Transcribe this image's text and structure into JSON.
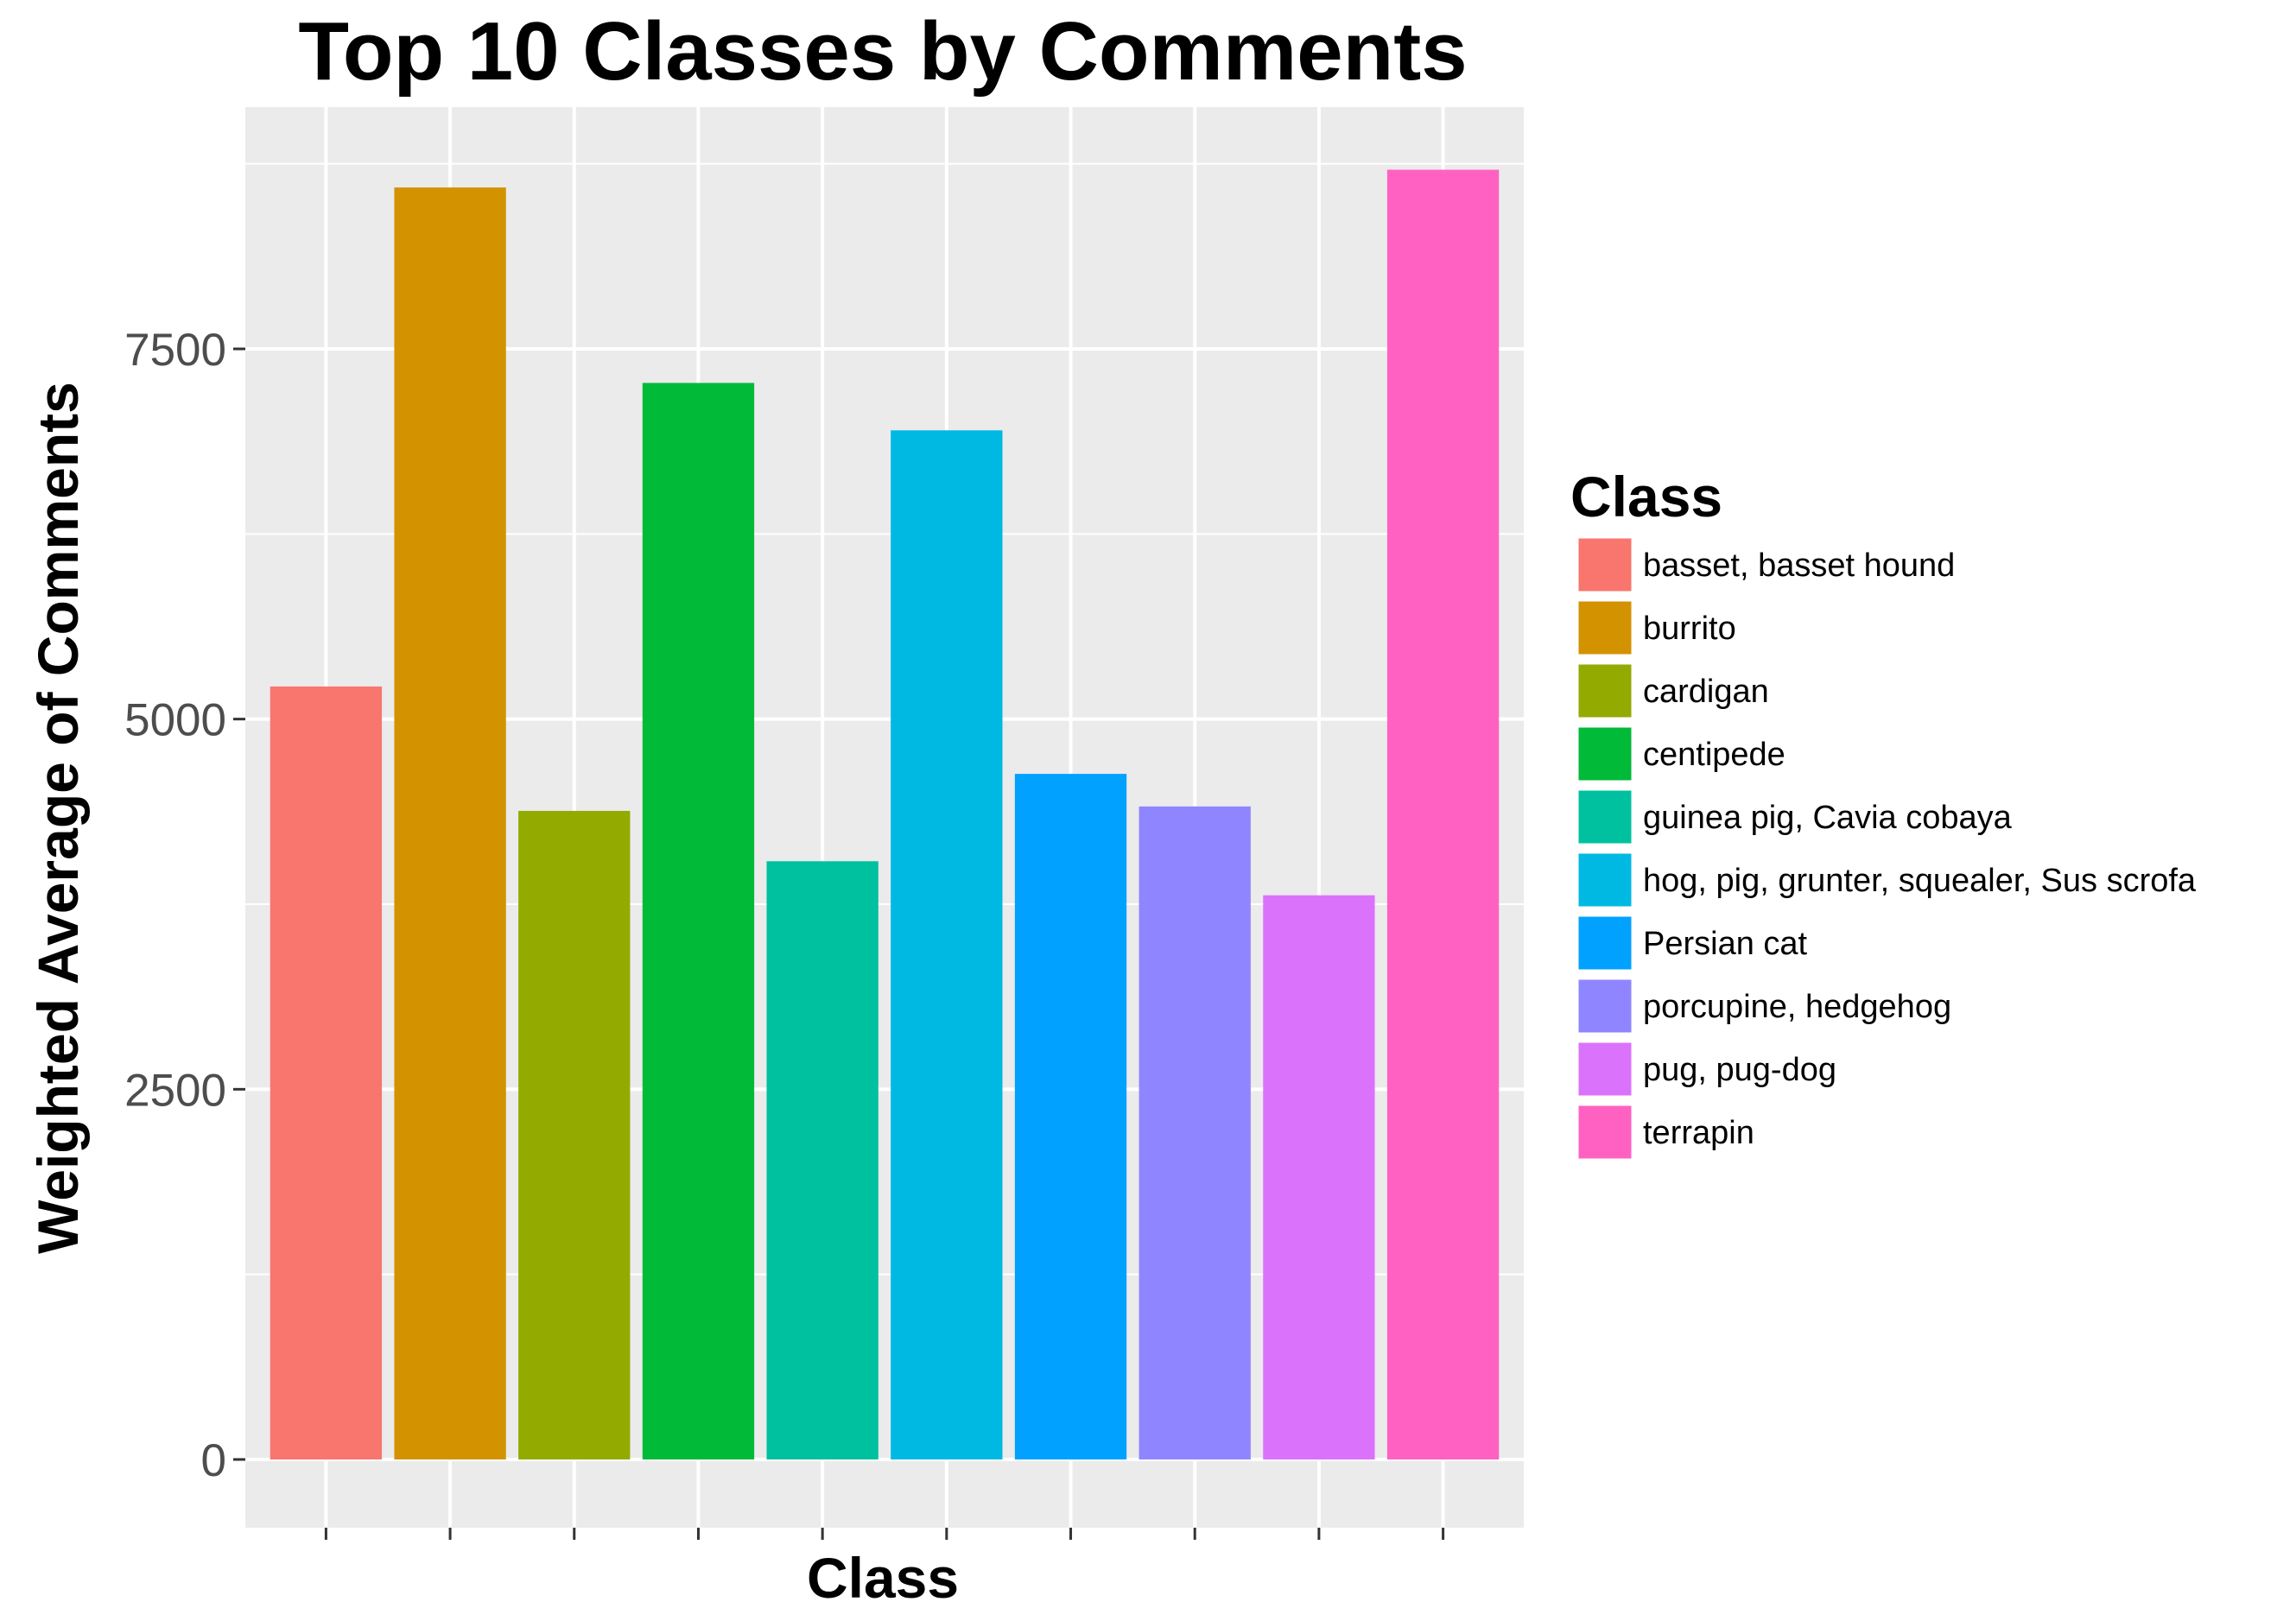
{
  "chart_data": {
    "type": "bar",
    "title": "Top 10 Classes by Comments",
    "xlabel": "Class",
    "ylabel": "Weighted Average of Comments",
    "ylim": [
      0,
      9400
    ],
    "y_ticks": [
      0,
      2500,
      5000,
      7500
    ],
    "grid": true,
    "legend": {
      "title": "Class",
      "position": "right"
    },
    "categories": [
      "basset, basset hound",
      "burrito",
      "cardigan",
      "centipede",
      "guinea pig, Cavia cobaya",
      "hog, pig, grunter, squealer, Sus scrofa",
      "Persian cat",
      "porcupine, hedgehog",
      "pug, pug-dog",
      "terrapin"
    ],
    "values": [
      5220,
      8590,
      4380,
      7270,
      4040,
      6950,
      4630,
      4410,
      3810,
      8710
    ],
    "colors": [
      "#F8766D",
      "#D39200",
      "#93AA00",
      "#00BA38",
      "#00C19F",
      "#00B9E3",
      "#00A1FF",
      "#8F86FF",
      "#DB72FB",
      "#FF61C3"
    ],
    "panel_background": "#EBEBEB",
    "grid_color": "#FFFFFF"
  }
}
